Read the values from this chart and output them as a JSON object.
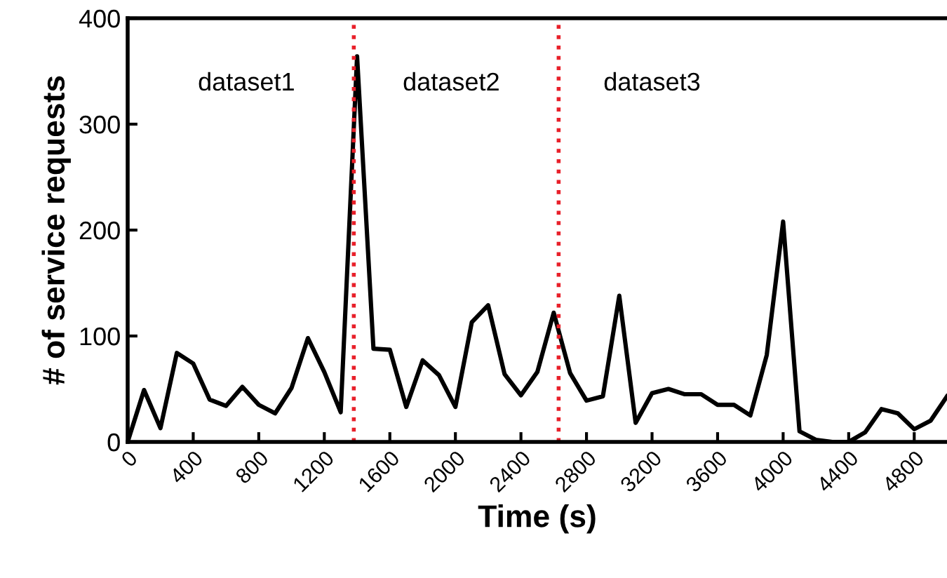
{
  "chart_data": {
    "type": "line",
    "xlabel": "Time (s)",
    "ylabel": "# of service requests",
    "x": [
      0,
      100,
      200,
      300,
      400,
      500,
      600,
      700,
      800,
      900,
      1000,
      1100,
      1200,
      1300,
      1400,
      1500,
      1600,
      1700,
      1800,
      1900,
      2000,
      2100,
      2200,
      2300,
      2400,
      2500,
      2600,
      2700,
      2800,
      2900,
      3000,
      3100,
      3200,
      3300,
      3400,
      3500,
      3600,
      3700,
      3800,
      3900,
      4000,
      4100,
      4200,
      4300,
      4400,
      4500,
      4600,
      4700,
      4800,
      4900,
      5000
    ],
    "series": [
      {
        "color": "#000000",
        "values": [
          0,
          49,
          13,
          84,
          74,
          40,
          34,
          52,
          35,
          27,
          51,
          98,
          66,
          28,
          364,
          88,
          87,
          33,
          77,
          63,
          33,
          113,
          129,
          64,
          44,
          66,
          122,
          65,
          39,
          43,
          138,
          18,
          46,
          50,
          45,
          45,
          35,
          35,
          25,
          82,
          208,
          10,
          2,
          0,
          0,
          9,
          31,
          27,
          12,
          20,
          43
        ]
      }
    ],
    "xlim": [
      0,
      5000
    ],
    "xticks": [
      0,
      400,
      800,
      1200,
      1600,
      2000,
      2400,
      2800,
      3200,
      3600,
      4000,
      4400,
      4800
    ],
    "ylim": [
      0,
      400
    ],
    "yticks": [
      0,
      100,
      200,
      300,
      400
    ],
    "grid": false,
    "legend": false,
    "marker": "none",
    "line_style": "solid",
    "ref_lines": [
      {
        "axis": "x",
        "value": 1380,
        "color": "#e8202a",
        "line_style": "dotted"
      },
      {
        "axis": "x",
        "value": 2630,
        "color": "#e8202a",
        "line_style": "dotted"
      }
    ],
    "annotations": [
      "dataset1",
      "dataset2",
      "dataset3"
    ]
  }
}
